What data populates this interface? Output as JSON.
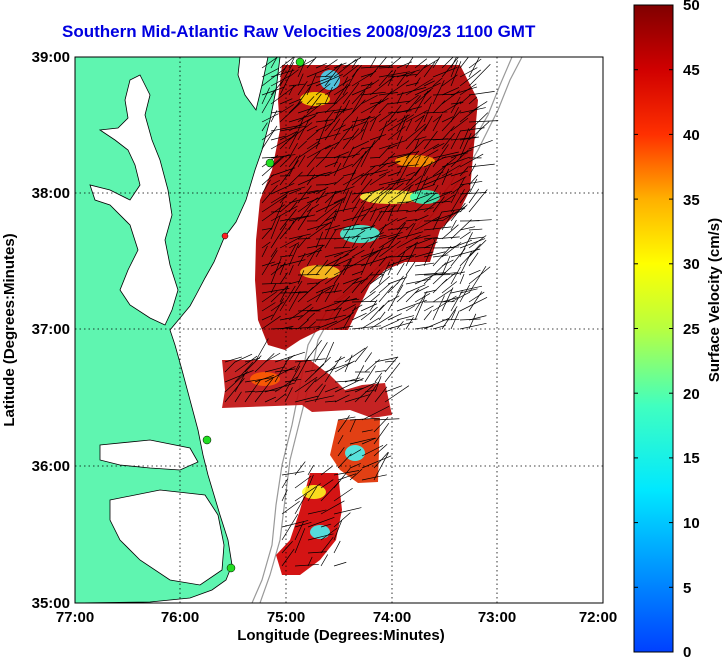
{
  "title": "Southern Mid-Atlantic Raw Velocities 2008/09/23 1100 GMT",
  "x_axis": {
    "label": "Longitude (Degrees:Minutes)",
    "ticks": [
      "77:00",
      "76:00",
      "75:00",
      "74:00",
      "73:00",
      "72:00"
    ]
  },
  "y_axis": {
    "label": "Latitude (Degrees:Minutes)",
    "ticks": [
      "39:00",
      "38:00",
      "37:00",
      "36:00",
      "35:00"
    ]
  },
  "colorbar": {
    "label": "Surface Velocity (cm/s)",
    "ticks": [
      "50",
      "45",
      "40",
      "35",
      "30",
      "25",
      "20",
      "15",
      "10",
      "5",
      "0"
    ],
    "min": 0,
    "max": 50,
    "colormap": "jet"
  },
  "colors": {
    "title": "#0000e0",
    "land": "#5ff5b0",
    "sea": "#ffffff",
    "grid": "#000000",
    "stations": "#22dd22"
  },
  "map_extent": {
    "lon_min": -77,
    "lon_max": -72,
    "lat_min": 35,
    "lat_max": 39
  },
  "grid": "dotted"
}
